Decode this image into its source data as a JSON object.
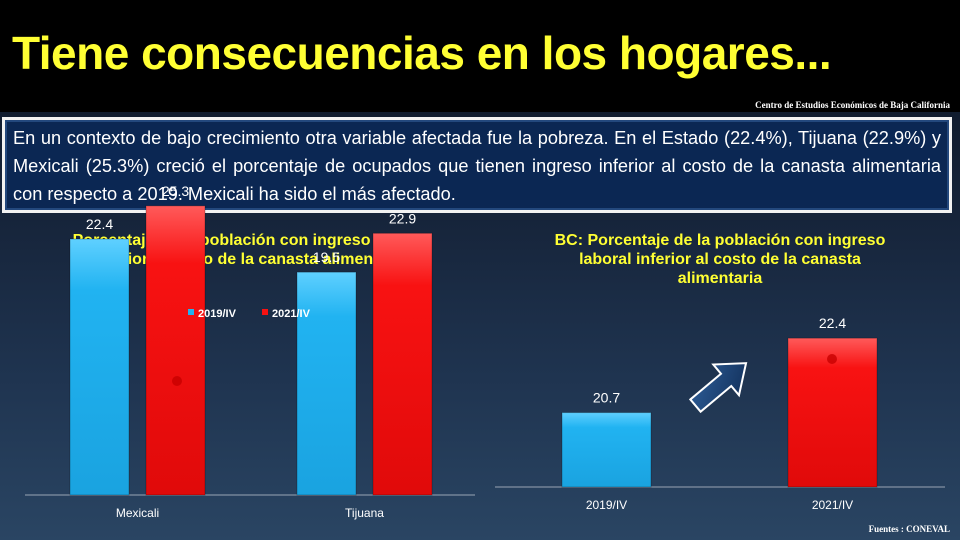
{
  "title": "Tiene consecuencias en los hogares...",
  "source_top": "Centro de Estudios  Económicos  de  Baja California",
  "summary": "En un contexto de bajo crecimiento otra variable afectada fue la pobreza. En el Estado (22.4%), Tijuana (22.9%) y Mexicali (25.3%) creció el porcentaje de ocupados que tienen ingreso inferior al costo de la canasta alimentaria con respecto a 2019. Mexicali ha sido el más afectado.",
  "source_bottom": "Fuentes :  CONEVAL",
  "colors": {
    "series_2019": "#21b3f1",
    "series_2021": "#f81212",
    "title": "#ffff33"
  },
  "chart_data": [
    {
      "type": "bar",
      "title": "Porcentaje de la población con ingreso laboral inferior al costo de la canasta alimentaria",
      "categories": [
        "Mexicali",
        "Tijuana"
      ],
      "series": [
        {
          "name": "2019/IV",
          "values": [
            22.4,
            19.5
          ]
        },
        {
          "name": "2021/IV",
          "values": [
            25.3,
            22.9
          ]
        }
      ],
      "ylim": [
        0,
        35
      ],
      "legend": "top",
      "grid": false
    },
    {
      "type": "bar",
      "title": "BC: Porcentaje de la población con ingreso laboral inferior al costo de la canasta alimentaria",
      "categories": [
        "2019/IV",
        "2021/IV"
      ],
      "values": [
        20.7,
        22.4
      ],
      "ylim": [
        19,
        23.5
      ],
      "legend": "none",
      "grid": false,
      "annotation": "arrow-up-right-icon"
    }
  ]
}
